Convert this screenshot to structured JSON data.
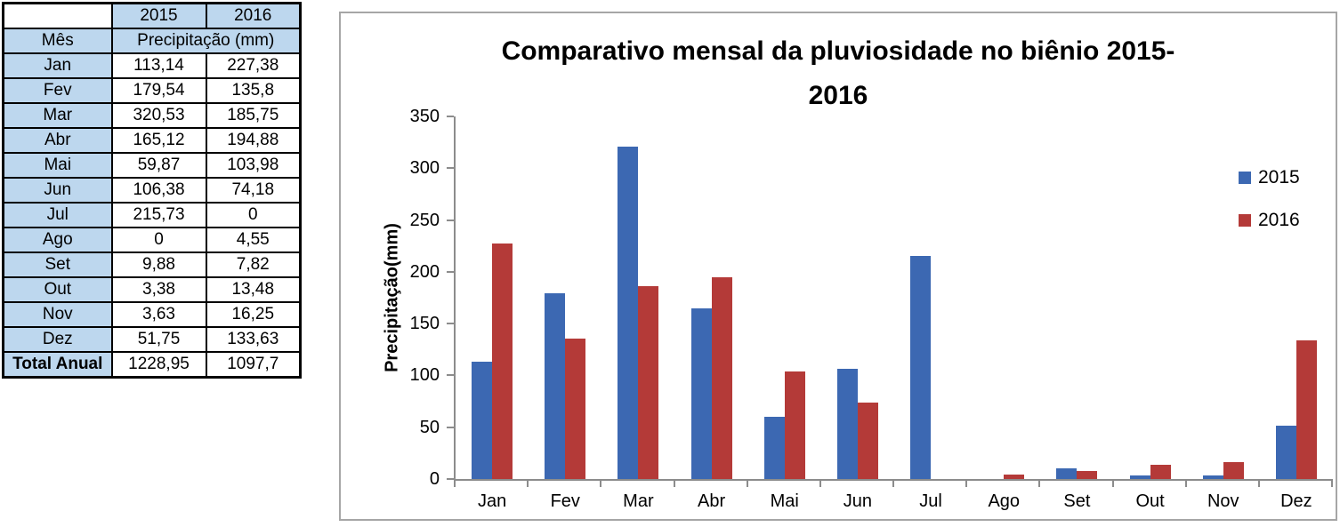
{
  "table": {
    "corner": "",
    "col_headers": [
      "2015",
      "2016"
    ],
    "row_header_label": "Mês",
    "value_header": "Precipitação (mm)",
    "months": [
      "Jan",
      "Fev",
      "Mar",
      "Abr",
      "Mai",
      "Jun",
      "Jul",
      "Ago",
      "Set",
      "Out",
      "Nov",
      "Dez"
    ],
    "values_2015": [
      "113,14",
      "179,54",
      "320,53",
      "165,12",
      "59,87",
      "106,38",
      "215,73",
      "0",
      "9,88",
      "3,38",
      "3,63",
      "51,75"
    ],
    "values_2016": [
      "227,38",
      "135,8",
      "185,75",
      "194,88",
      "103,98",
      "74,18",
      "0",
      "4,55",
      "7,82",
      "13,48",
      "16,25",
      "133,63"
    ],
    "total_label": "Total Anual",
    "total_2015": "1228,95",
    "total_2016": "1097,7"
  },
  "chart_data": {
    "type": "bar",
    "title": "Comparativo mensal da pluviosidade no biênio 2015-2016",
    "title_lines": [
      "Comparativo mensal da pluviosidade no biênio 2015-",
      "2016"
    ],
    "ylabel": "Precipitação(mm)",
    "xlabel": "",
    "ylim": [
      0,
      350
    ],
    "yticks": [
      "0",
      "50",
      "100",
      "150",
      "200",
      "250",
      "300",
      "350"
    ],
    "grid": false,
    "legend_position": "right-inside",
    "categories": [
      "Jan",
      "Fev",
      "Mar",
      "Abr",
      "Mai",
      "Jun",
      "Jul",
      "Ago",
      "Set",
      "Out",
      "Nov",
      "Dez"
    ],
    "series": [
      {
        "name": "2015",
        "color": "#3C68B2",
        "values": [
          113.14,
          179.54,
          320.53,
          165.12,
          59.87,
          106.38,
          215.73,
          0,
          9.88,
          3.38,
          3.63,
          51.75
        ]
      },
      {
        "name": "2016",
        "color": "#B43A38",
        "values": [
          227.38,
          135.8,
          185.75,
          194.88,
          103.98,
          74.18,
          0,
          4.55,
          7.82,
          13.48,
          16.25,
          133.63
        ]
      }
    ]
  },
  "colors": {
    "table_header_bg": "#BDD7EE",
    "table_border": "#000000",
    "chart_border": "#A6A6A6",
    "axis": "#8C8C8C",
    "series_2015": "#3C68B2",
    "series_2016": "#B43A38"
  }
}
